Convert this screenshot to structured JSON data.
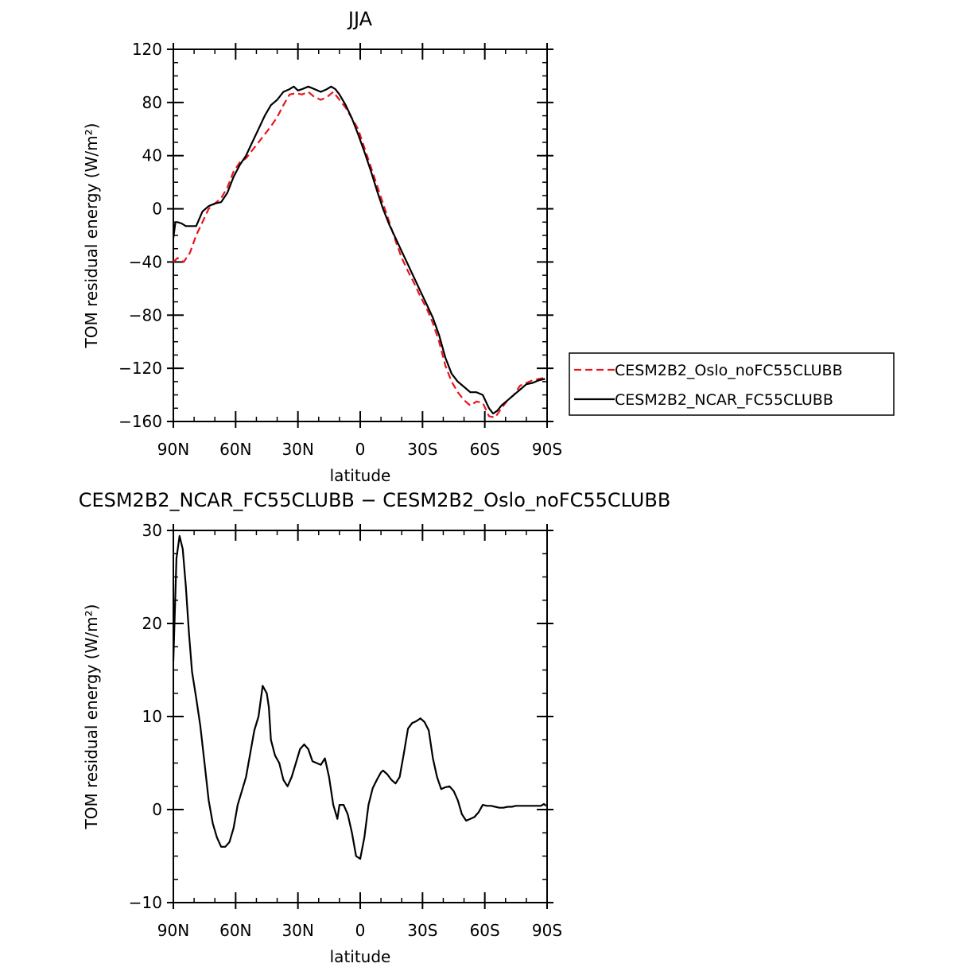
{
  "chart_data": [
    {
      "type": "line",
      "title": "JJA",
      "xlabel": "latitude",
      "ylabel": "TOM residual energy (W/m²)",
      "xlim": [
        90,
        -90
      ],
      "ylim": [
        -160,
        120
      ],
      "xticks": [
        90,
        60,
        30,
        0,
        -30,
        -60,
        -90
      ],
      "xtick_labels": [
        "90N",
        "60N",
        "30N",
        "0",
        "30S",
        "60S",
        "90S"
      ],
      "yticks": [
        -160,
        -120,
        -80,
        -40,
        0,
        40,
        80,
        120
      ],
      "ytick_labels": [
        "−160",
        "−120",
        "−80",
        "−40",
        "0",
        "40",
        "80",
        "120"
      ],
      "legend_position": "right",
      "series": [
        {
          "name": "CESM2B2_Oslo_noFC55CLUBB",
          "color": "#e8141c",
          "dash": "dashed",
          "x": [
            90,
            88,
            85,
            82,
            79,
            76,
            73,
            70,
            67,
            64,
            61,
            58,
            55,
            52,
            49,
            46,
            43,
            40,
            37,
            34,
            31,
            28,
            25,
            22,
            19,
            16,
            13,
            10,
            7,
            4,
            1,
            -2,
            -5,
            -8,
            -11,
            -14,
            -17,
            -20,
            -23,
            -26,
            -29,
            -32,
            -35,
            -38,
            -41,
            -44,
            -47,
            -50,
            -53,
            -56,
            -59,
            -62,
            -65,
            -68,
            -71,
            -74,
            -77,
            -80,
            -83,
            -86,
            -89
          ],
          "values": [
            -40,
            -37,
            -40,
            -33,
            -20,
            -10,
            0,
            4,
            8,
            16,
            28,
            35,
            38,
            44,
            50,
            56,
            62,
            69,
            78,
            86,
            87,
            86,
            88,
            84,
            82,
            84,
            88,
            82,
            76,
            68,
            60,
            46,
            32,
            18,
            4,
            -10,
            -24,
            -37,
            -47,
            -56,
            -66,
            -75,
            -86,
            -100,
            -118,
            -130,
            -138,
            -144,
            -148,
            -145,
            -146,
            -156,
            -157,
            -150,
            -144,
            -140,
            -133,
            -131,
            -129,
            -128,
            -127
          ]
        },
        {
          "name": "CESM2B2_NCAR_FC55CLUBB",
          "color": "#000000",
          "dash": "solid",
          "x": [
            90,
            89,
            88,
            86,
            84,
            82,
            79,
            76,
            73,
            70,
            67,
            64,
            61,
            58,
            55,
            52,
            49,
            46,
            43,
            40,
            37,
            34,
            32,
            30,
            28,
            25,
            22,
            19,
            16,
            14,
            12,
            10,
            7,
            4,
            1,
            -2,
            -5,
            -8,
            -11,
            -14,
            -17,
            -20,
            -23,
            -26,
            -29,
            -32,
            -35,
            -38,
            -41,
            -44,
            -47,
            -50,
            -53,
            -56,
            -59,
            -62,
            -64,
            -66,
            -68,
            -71,
            -74,
            -77,
            -80,
            -83,
            -86,
            -89
          ],
          "values": [
            -22,
            -10,
            -10,
            -11,
            -13,
            -13,
            -13,
            -2,
            2,
            4,
            5,
            12,
            24,
            33,
            40,
            50,
            60,
            70,
            78,
            82,
            88,
            90,
            92,
            89,
            90,
            92,
            90,
            88,
            90,
            92,
            90,
            86,
            78,
            68,
            56,
            43,
            29,
            14,
            0,
            -12,
            -22,
            -32,
            -42,
            -52,
            -62,
            -72,
            -82,
            -95,
            -112,
            -124,
            -130,
            -134,
            -138,
            -138,
            -140,
            -150,
            -154,
            -152,
            -148,
            -144,
            -140,
            -136,
            -132,
            -131,
            -129,
            -128
          ]
        }
      ]
    },
    {
      "type": "line",
      "title": "CESM2B2_NCAR_FC55CLUBB − CESM2B2_Oslo_noFC55CLUBB",
      "xlabel": "latitude",
      "ylabel": "TOM residual energy (W/m²)",
      "xlim": [
        90,
        -90
      ],
      "ylim": [
        -10,
        30
      ],
      "xticks": [
        90,
        60,
        30,
        0,
        -30,
        -60,
        -90
      ],
      "xtick_labels": [
        "90N",
        "60N",
        "30N",
        "0",
        "30S",
        "60S",
        "90S"
      ],
      "yticks": [
        -10,
        0,
        10,
        20,
        30
      ],
      "ytick_labels": [
        "−10",
        "0",
        "10",
        "20",
        "30"
      ],
      "series": [
        {
          "name": "difference",
          "color": "#000000",
          "dash": "solid",
          "x": [
            90,
            88.5,
            87,
            85.5,
            84,
            82.5,
            81,
            79,
            77,
            75,
            73,
            71,
            69,
            67,
            65,
            63,
            61,
            59,
            57,
            55,
            53,
            51,
            49,
            47,
            45,
            44,
            43,
            41,
            39,
            37,
            35,
            33,
            31,
            29,
            27,
            25,
            23,
            21,
            19,
            17,
            15,
            13,
            11,
            10,
            8,
            6,
            4,
            2,
            0,
            -2,
            -4,
            -6,
            -8,
            -10,
            -11,
            -13,
            -15,
            -17,
            -19,
            -21,
            -23,
            -25,
            -27,
            -29,
            -31,
            -33,
            -35,
            -37,
            -39,
            -41,
            -43,
            -45,
            -47,
            -49,
            -51,
            -53,
            -55,
            -57,
            -59,
            -61,
            -63,
            -65,
            -67,
            -69,
            -71,
            -73,
            -75,
            -77,
            -79,
            -81,
            -83,
            -85,
            -87,
            -88.5,
            -89.5
          ],
          "values": [
            16,
            27,
            29.4,
            28,
            24,
            19,
            14.8,
            12,
            9,
            5,
            1,
            -1.5,
            -3,
            -4,
            -4,
            -3.5,
            -2,
            0.5,
            2,
            3.5,
            6,
            8.5,
            10,
            13.3,
            12.5,
            11,
            7.5,
            5.8,
            5,
            3.2,
            2.5,
            3.5,
            5,
            6.5,
            7,
            6.5,
            5.2,
            5,
            4.8,
            5.5,
            3.5,
            0.5,
            -1,
            0.5,
            0.5,
            -0.5,
            -2.5,
            -5,
            -5.3,
            -3,
            0.5,
            2.3,
            3.2,
            4,
            4.2,
            3.8,
            3.2,
            2.8,
            3.5,
            6,
            8.7,
            9.3,
            9.5,
            9.8,
            9.4,
            8.5,
            5.5,
            3.5,
            2.2,
            2.4,
            2.5,
            2,
            1,
            -0.5,
            -1.2,
            -1,
            -0.8,
            -0.3,
            0.5,
            0.4,
            0.4,
            0.3,
            0.2,
            0.2,
            0.3,
            0.3,
            0.4,
            0.4,
            0.4,
            0.4,
            0.4,
            0.4,
            0.4,
            0.6,
            0.4
          ]
        }
      ]
    }
  ]
}
